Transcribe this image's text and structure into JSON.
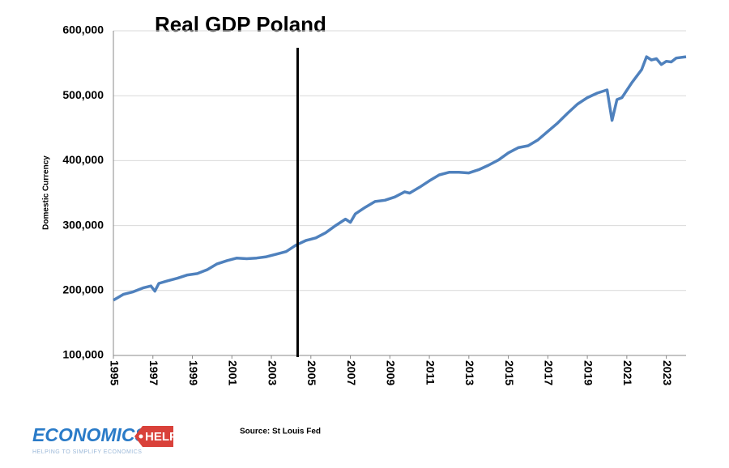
{
  "chart_data": {
    "type": "line",
    "title": "Real GDP Poland",
    "ylabel": "Domestic Currency",
    "source": "Source: St Louis Fed",
    "logo": {
      "main": "ECONOMICS",
      "tag": "HELP",
      "tagline": "HELPING TO SIMPLIFY ECONOMICS"
    },
    "color": "#4f81bd",
    "x": [
      1995,
      1995.5,
      1996,
      1996.5,
      1996.9,
      1997.1,
      1997.3,
      1997.75,
      1998.25,
      1998.75,
      1999.25,
      1999.75,
      2000.25,
      2000.75,
      2001.25,
      2001.75,
      2002.25,
      2002.75,
      2003.25,
      2003.75,
      2004.25,
      2004.75,
      2005.25,
      2005.75,
      2006.25,
      2006.75,
      2007,
      2007.25,
      2007.75,
      2008.25,
      2008.75,
      2009.25,
      2009.75,
      2010,
      2010.5,
      2011,
      2011.5,
      2012,
      2012.5,
      2013,
      2013.5,
      2014,
      2014.5,
      2015,
      2015.5,
      2016,
      2016.5,
      2017,
      2017.5,
      2018,
      2018.5,
      2019,
      2019.5,
      2020,
      2020.25,
      2020.5,
      2020.75,
      2021.25,
      2021.75,
      2022,
      2022.25,
      2022.5,
      2022.75,
      2023,
      2023.25,
      2023.5,
      2024
    ],
    "values": [
      185000,
      194000,
      198000,
      204000,
      207000,
      199000,
      211000,
      215000,
      219000,
      224000,
      226000,
      232000,
      241000,
      246000,
      250000,
      249000,
      250000,
      252000,
      256000,
      260000,
      270000,
      277000,
      281000,
      289000,
      300000,
      310000,
      305000,
      318000,
      328000,
      337000,
      339000,
      344000,
      352000,
      350000,
      359000,
      369000,
      378000,
      382000,
      382000,
      381000,
      386000,
      393000,
      401000,
      412000,
      420000,
      423000,
      432000,
      445000,
      458000,
      473000,
      487000,
      497000,
      504000,
      509000,
      462000,
      494000,
      497000,
      520000,
      540000,
      560000,
      555000,
      557000,
      548000,
      553000,
      552000,
      558000,
      560000
    ],
    "xlim": [
      1995,
      2024
    ],
    "xticks": [
      1995,
      1997,
      1999,
      2001,
      2003,
      2005,
      2007,
      2009,
      2011,
      2013,
      2015,
      2017,
      2019,
      2021,
      2023
    ],
    "ylim": [
      100000,
      600000
    ],
    "yticks": [
      {
        "value": 100000,
        "label": "100,000"
      },
      {
        "value": 200000,
        "label": "200,000"
      },
      {
        "value": 300000,
        "label": "300,000"
      },
      {
        "value": 400000,
        "label": "400,000"
      },
      {
        "value": 500000,
        "label": "500,000"
      },
      {
        "value": 600000,
        "label": "600,000"
      }
    ],
    "vline": 2004.33,
    "grid": true
  }
}
